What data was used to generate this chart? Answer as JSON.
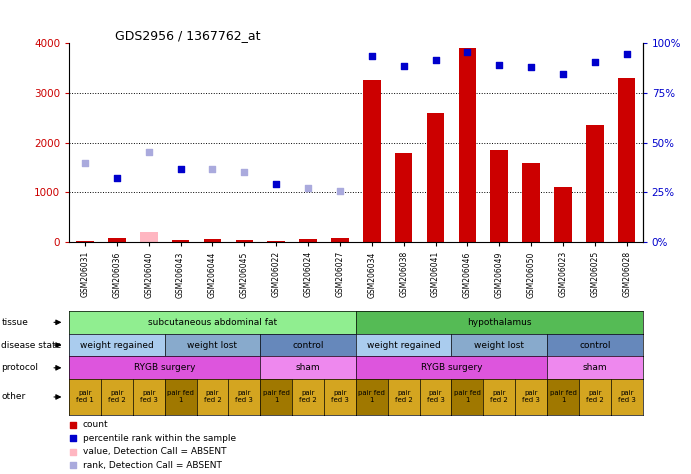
{
  "title": "GDS2956 / 1367762_at",
  "samples": [
    "GSM206031",
    "GSM206036",
    "GSM206040",
    "GSM206043",
    "GSM206044",
    "GSM206045",
    "GSM206022",
    "GSM206024",
    "GSM206027",
    "GSM206034",
    "GSM206038",
    "GSM206041",
    "GSM206046",
    "GSM206049",
    "GSM206050",
    "GSM206023",
    "GSM206025",
    "GSM206028"
  ],
  "count_values": [
    30,
    80,
    200,
    40,
    60,
    40,
    30,
    60,
    80,
    3250,
    1800,
    2600,
    3900,
    1850,
    1600,
    1100,
    2350,
    3300
  ],
  "count_absent": [
    false,
    false,
    true,
    false,
    false,
    false,
    false,
    false,
    false,
    false,
    false,
    false,
    false,
    false,
    false,
    false,
    false,
    false
  ],
  "rank_values": [
    1600,
    1300,
    1820,
    1480,
    1480,
    1420,
    1175,
    1080,
    1020,
    3750,
    3550,
    3660,
    3830,
    3560,
    3530,
    3380,
    3620,
    3780
  ],
  "rank_absent": [
    true,
    false,
    true,
    false,
    true,
    true,
    false,
    true,
    true,
    false,
    false,
    false,
    false,
    false,
    false,
    false,
    false,
    false
  ],
  "tissue_groups": [
    {
      "label": "subcutaneous abdominal fat",
      "start": 0,
      "end": 9,
      "color": "#90EE90"
    },
    {
      "label": "hypothalamus",
      "start": 9,
      "end": 18,
      "color": "#55BB55"
    }
  ],
  "disease_state_groups": [
    {
      "label": "weight regained",
      "start": 0,
      "end": 3,
      "color": "#AACCEE"
    },
    {
      "label": "weight lost",
      "start": 3,
      "end": 6,
      "color": "#88AACC"
    },
    {
      "label": "control",
      "start": 6,
      "end": 9,
      "color": "#6688BB"
    },
    {
      "label": "weight regained",
      "start": 9,
      "end": 12,
      "color": "#AACCEE"
    },
    {
      "label": "weight lost",
      "start": 12,
      "end": 15,
      "color": "#88AACC"
    },
    {
      "label": "control",
      "start": 15,
      "end": 18,
      "color": "#6688BB"
    }
  ],
  "protocol_groups": [
    {
      "label": "RYGB surgery",
      "start": 0,
      "end": 6,
      "color": "#DD55DD"
    },
    {
      "label": "sham",
      "start": 6,
      "end": 9,
      "color": "#EE88EE"
    },
    {
      "label": "RYGB surgery",
      "start": 9,
      "end": 15,
      "color": "#DD55DD"
    },
    {
      "label": "sham",
      "start": 15,
      "end": 18,
      "color": "#EE88EE"
    }
  ],
  "other_labels": [
    "pair\nfed 1",
    "pair\nfed 2",
    "pair\nfed 3",
    "pair fed\n1",
    "pair\nfed 2",
    "pair\nfed 3",
    "pair fed\n1",
    "pair\nfed 2",
    "pair\nfed 3",
    "pair fed\n1",
    "pair\nfed 2",
    "pair\nfed 3",
    "pair fed\n1",
    "pair\nfed 2",
    "pair\nfed 3",
    "pair fed\n1",
    "pair\nfed 2",
    "pair\nfed 3"
  ],
  "other_colors": [
    "#D4A520",
    "#D4A520",
    "#D4A520",
    "#A07800",
    "#D4A520",
    "#D4A520",
    "#A07800",
    "#D4A520",
    "#D4A520",
    "#A07800",
    "#D4A520",
    "#D4A520",
    "#A07800",
    "#D4A520",
    "#D4A520",
    "#A07800",
    "#D4A520",
    "#D4A520"
  ],
  "bar_color_present": "#CC0000",
  "bar_color_absent": "#FFB6C1",
  "rank_color_present": "#0000CC",
  "rank_color_absent": "#AAAADD",
  "yticks_left": [
    0,
    1000,
    2000,
    3000,
    4000
  ],
  "yticks_right": [
    0,
    25,
    50,
    75,
    100
  ],
  "legend_items": [
    {
      "label": "count",
      "color": "#CC0000"
    },
    {
      "label": "percentile rank within the sample",
      "color": "#0000CC"
    },
    {
      "label": "value, Detection Call = ABSENT",
      "color": "#FFB6C1"
    },
    {
      "label": "rank, Detection Call = ABSENT",
      "color": "#AAAADD"
    }
  ],
  "row_labels": [
    "tissue",
    "disease state",
    "protocol",
    "other"
  ]
}
